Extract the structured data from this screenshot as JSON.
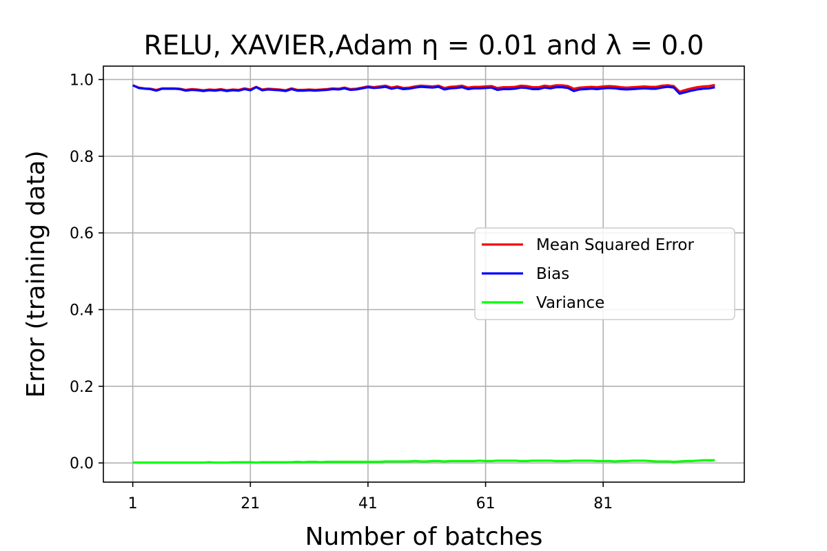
{
  "chart_data": {
    "type": "line",
    "title": "RELU, XAVIER,Adam η = 0.01 and λ = 0.0",
    "xlabel": "Number of batches",
    "ylabel": "Error (training data)",
    "xlim": [
      -4,
      105
    ],
    "ylim": [
      -0.05,
      1.035
    ],
    "xticks": [
      1,
      21,
      41,
      61,
      81
    ],
    "yticks": [
      0.0,
      0.2,
      0.4,
      0.6,
      0.8,
      1.0
    ],
    "ytick_labels": [
      "0.0",
      "0.2",
      "0.4",
      "0.6",
      "0.8",
      "1.0"
    ],
    "xtick_labels": [
      "1",
      "21",
      "41",
      "61",
      "81"
    ],
    "grid": true,
    "legend_position": "center-right",
    "x": [
      1,
      2,
      3,
      4,
      5,
      6,
      7,
      8,
      9,
      10,
      11,
      12,
      13,
      14,
      15,
      16,
      17,
      18,
      19,
      20,
      21,
      22,
      23,
      24,
      25,
      26,
      27,
      28,
      29,
      30,
      31,
      32,
      33,
      34,
      35,
      36,
      37,
      38,
      39,
      40,
      41,
      42,
      43,
      44,
      45,
      46,
      47,
      48,
      49,
      50,
      51,
      52,
      53,
      54,
      55,
      56,
      57,
      58,
      59,
      60,
      61,
      62,
      63,
      64,
      65,
      66,
      67,
      68,
      69,
      70,
      71,
      72,
      73,
      74,
      75,
      76,
      77,
      78,
      79,
      80,
      81,
      82,
      83,
      84,
      85,
      86,
      87,
      88,
      89,
      90,
      91,
      92,
      93,
      94,
      95,
      96,
      97,
      98,
      99,
      100
    ],
    "series": [
      {
        "name": "Mean Squared Error",
        "color": "#ff0000",
        "values": [
          0.985,
          0.979,
          0.977,
          0.976,
          0.973,
          0.977,
          0.977,
          0.977,
          0.976,
          0.973,
          0.975,
          0.974,
          0.972,
          0.974,
          0.973,
          0.975,
          0.972,
          0.974,
          0.973,
          0.977,
          0.974,
          0.981,
          0.974,
          0.976,
          0.975,
          0.974,
          0.972,
          0.977,
          0.973,
          0.973,
          0.974,
          0.973,
          0.974,
          0.975,
          0.977,
          0.976,
          0.979,
          0.975,
          0.976,
          0.979,
          0.982,
          0.98,
          0.982,
          0.984,
          0.979,
          0.982,
          0.978,
          0.979,
          0.982,
          0.984,
          0.983,
          0.982,
          0.984,
          0.978,
          0.981,
          0.982,
          0.984,
          0.979,
          0.981,
          0.981,
          0.982,
          0.983,
          0.978,
          0.98,
          0.98,
          0.981,
          0.984,
          0.983,
          0.98,
          0.98,
          0.984,
          0.982,
          0.985,
          0.985,
          0.983,
          0.976,
          0.979,
          0.98,
          0.981,
          0.98,
          0.982,
          0.983,
          0.982,
          0.98,
          0.979,
          0.98,
          0.981,
          0.982,
          0.981,
          0.981,
          0.984,
          0.985,
          0.983,
          0.968,
          0.973,
          0.977,
          0.98,
          0.982,
          0.983,
          0.986
        ]
      },
      {
        "name": "Bias",
        "color": "#0000ff",
        "values": [
          0.985,
          0.978,
          0.976,
          0.975,
          0.971,
          0.976,
          0.976,
          0.976,
          0.975,
          0.971,
          0.973,
          0.972,
          0.97,
          0.972,
          0.971,
          0.973,
          0.97,
          0.972,
          0.971,
          0.975,
          0.972,
          0.98,
          0.972,
          0.974,
          0.973,
          0.972,
          0.97,
          0.975,
          0.971,
          0.971,
          0.972,
          0.971,
          0.972,
          0.973,
          0.975,
          0.974,
          0.977,
          0.973,
          0.974,
          0.977,
          0.98,
          0.978,
          0.979,
          0.981,
          0.976,
          0.979,
          0.975,
          0.976,
          0.979,
          0.981,
          0.98,
          0.979,
          0.981,
          0.974,
          0.977,
          0.978,
          0.98,
          0.975,
          0.977,
          0.977,
          0.978,
          0.979,
          0.973,
          0.975,
          0.975,
          0.976,
          0.979,
          0.978,
          0.975,
          0.975,
          0.979,
          0.977,
          0.98,
          0.98,
          0.978,
          0.97,
          0.974,
          0.975,
          0.976,
          0.975,
          0.977,
          0.978,
          0.977,
          0.975,
          0.974,
          0.975,
          0.976,
          0.977,
          0.976,
          0.976,
          0.979,
          0.981,
          0.979,
          0.963,
          0.967,
          0.971,
          0.974,
          0.976,
          0.977,
          0.98
        ]
      },
      {
        "name": "Variance",
        "color": "#00ff00",
        "values": [
          0.001,
          0.001,
          0.001,
          0.001,
          0.001,
          0.001,
          0.001,
          0.001,
          0.001,
          0.001,
          0.001,
          0.001,
          0.001,
          0.002,
          0.001,
          0.001,
          0.001,
          0.002,
          0.002,
          0.002,
          0.002,
          0.001,
          0.002,
          0.002,
          0.002,
          0.002,
          0.002,
          0.002,
          0.003,
          0.002,
          0.003,
          0.003,
          0.002,
          0.003,
          0.003,
          0.003,
          0.003,
          0.003,
          0.003,
          0.003,
          0.003,
          0.003,
          0.003,
          0.004,
          0.004,
          0.004,
          0.004,
          0.004,
          0.005,
          0.004,
          0.004,
          0.005,
          0.005,
          0.004,
          0.005,
          0.005,
          0.005,
          0.005,
          0.005,
          0.006,
          0.005,
          0.005,
          0.006,
          0.006,
          0.006,
          0.006,
          0.005,
          0.005,
          0.006,
          0.006,
          0.006,
          0.006,
          0.005,
          0.005,
          0.005,
          0.006,
          0.006,
          0.006,
          0.006,
          0.005,
          0.005,
          0.005,
          0.004,
          0.005,
          0.005,
          0.006,
          0.006,
          0.006,
          0.005,
          0.004,
          0.004,
          0.004,
          0.003,
          0.004,
          0.005,
          0.005,
          0.006,
          0.007,
          0.007,
          0.007
        ]
      }
    ]
  }
}
